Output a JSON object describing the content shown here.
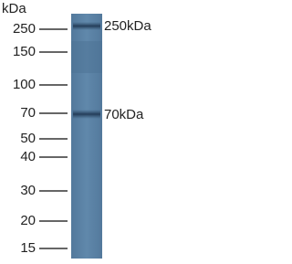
{
  "unit_label": "kDa",
  "markers": [
    {
      "label": "250"
    },
    {
      "label": "150"
    },
    {
      "label": "100"
    },
    {
      "label": "70"
    },
    {
      "label": "50"
    },
    {
      "label": "40"
    },
    {
      "label": "30"
    },
    {
      "label": "20"
    },
    {
      "label": "15"
    }
  ],
  "bands": [
    {
      "label": "250kDa"
    },
    {
      "label": "70kDa"
    }
  ]
}
